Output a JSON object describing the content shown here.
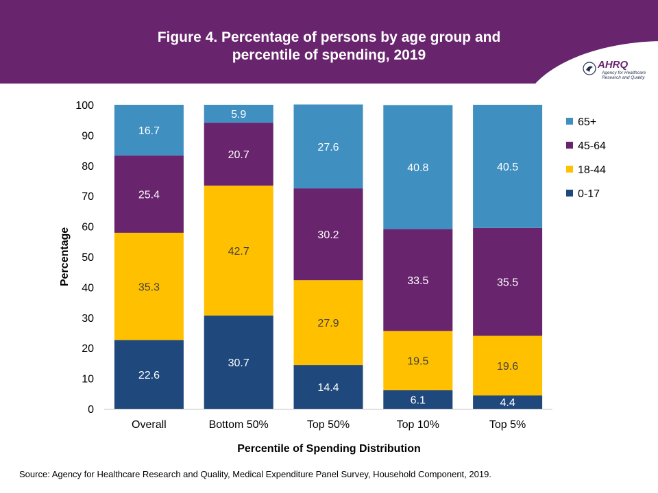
{
  "header": {
    "title_line1": "Figure 4. Percentage of persons by age group and",
    "title_line2": "percentile of spending, 2019",
    "logo_text": "AHRQ",
    "logo_sub1": "Agency for Healthcare",
    "logo_sub2": "Research and Quality"
  },
  "source": "Source: Agency for Healthcare Research and Quality, Medical Expenditure Panel Survey, Household Component, 2019.",
  "colors": {
    "header": "#68246d",
    "0-17": "#1f497d",
    "18-44": "#ffc000",
    "45-64": "#68246d",
    "65+": "#3f8fc0"
  },
  "chart_data": {
    "type": "bar",
    "stacked": true,
    "categories": [
      "Overall",
      "Bottom 50%",
      "Top 50%",
      "Top 10%",
      "Top 5%"
    ],
    "series": [
      {
        "name": "0-17",
        "values": [
          22.6,
          30.7,
          14.4,
          6.1,
          4.4
        ],
        "color": "#1f497d",
        "label_color": "#ffffff"
      },
      {
        "name": "18-44",
        "values": [
          35.3,
          42.7,
          27.9,
          19.5,
          19.6
        ],
        "color": "#ffc000",
        "label_color": "#404040"
      },
      {
        "name": "45-64",
        "values": [
          25.4,
          20.7,
          30.2,
          33.5,
          35.5
        ],
        "color": "#68246d",
        "label_color": "#ffffff"
      },
      {
        "name": "65+",
        "values": [
          16.7,
          5.9,
          27.6,
          40.8,
          40.5
        ],
        "color": "#3f8fc0",
        "label_color": "#ffffff"
      }
    ],
    "xlabel": "Percentile of Spending Distribution",
    "ylabel": "Percentage",
    "ylim": [
      0,
      100
    ],
    "yticks": [
      0,
      10,
      20,
      30,
      40,
      50,
      60,
      70,
      80,
      90,
      100
    ],
    "legend_order": [
      "65+",
      "45-64",
      "18-44",
      "0-17"
    ],
    "legend_position": "right",
    "grid": false
  }
}
